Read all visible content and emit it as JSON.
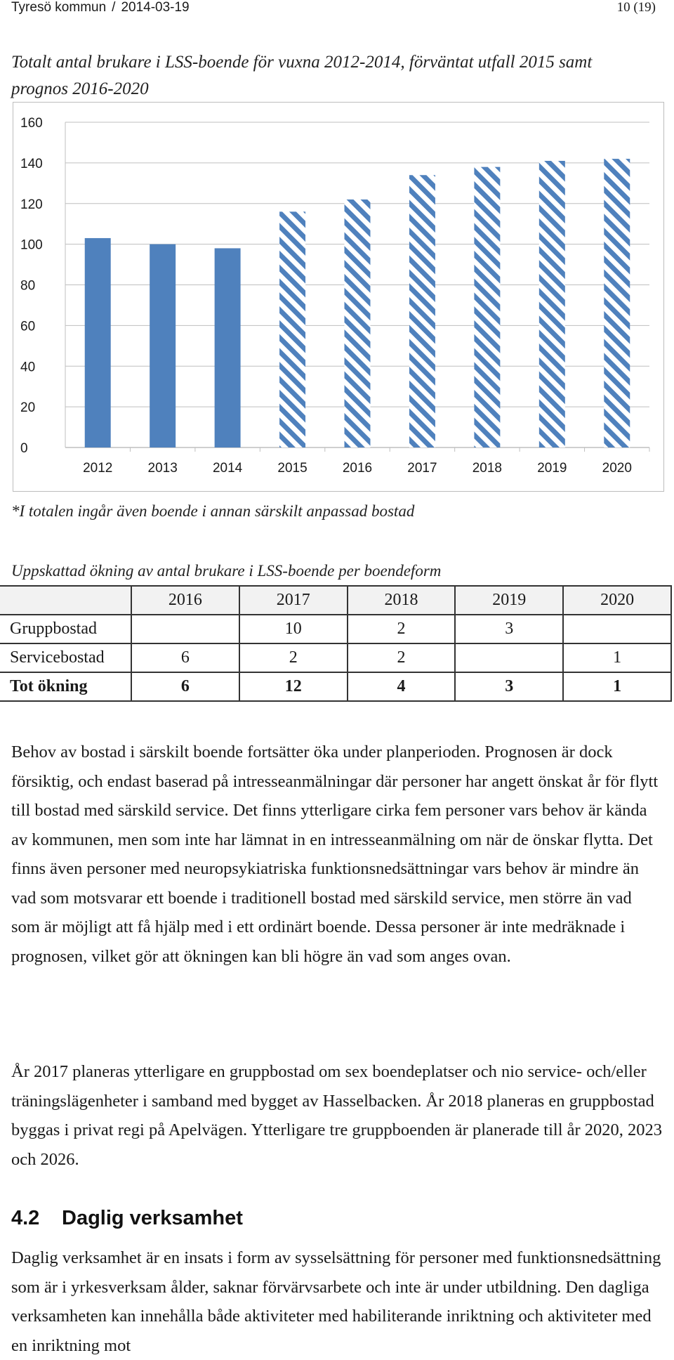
{
  "header": {
    "municipality": "Tyresö kommun",
    "separator": "/",
    "date": "2014-03-19",
    "page": "10 (19)"
  },
  "chart_title": "Totalt antal brukare i LSS-boende för vuxna 2012-2014, förväntat utfall 2015 samt prognos 2016-2020",
  "chart_data": {
    "type": "bar",
    "categories": [
      "2012",
      "2013",
      "2014",
      "2015",
      "2016",
      "2017",
      "2018",
      "2019",
      "2020"
    ],
    "values": [
      103,
      100,
      98,
      116,
      122,
      134,
      138,
      141,
      142
    ],
    "styles": [
      "solid",
      "solid",
      "solid",
      "hatched",
      "hatched",
      "hatched",
      "hatched",
      "hatched",
      "hatched"
    ],
    "ylim": [
      0,
      160
    ],
    "yticks": [
      "0",
      "20",
      "40",
      "60",
      "80",
      "100",
      "120",
      "140",
      "160"
    ],
    "grid": true,
    "colors": {
      "bar": "#4f81bd",
      "grid": "#bfbfbf"
    }
  },
  "chart_note": "*I totalen ingår även boende i annan särskilt anpassad bostad",
  "table": {
    "title": "Uppskattad ökning av antal brukare i LSS-boende per boendeform",
    "header": [
      "",
      "2016",
      "2017",
      "2018",
      "2019",
      "2020"
    ],
    "rows": [
      {
        "label": "Gruppbostad",
        "cells": [
          "",
          "10",
          "2",
          "3",
          ""
        ]
      },
      {
        "label": "Servicebostad",
        "cells": [
          "6",
          "2",
          "2",
          "",
          "1"
        ]
      },
      {
        "label": "Tot ökning",
        "cells": [
          "6",
          "12",
          "4",
          "3",
          "1"
        ]
      }
    ]
  },
  "paragraphs": [
    "Behov av bostad i särskilt boende fortsätter öka under planperioden. Prognosen är dock försiktig, och endast baserad på intresseanmälningar där personer har angett önskat år för flytt till bostad med särskild service. Det finns ytterligare cirka fem personer vars behov är kända av kommunen, men som inte har lämnat in en intresseanmälning om när de önskar flytta. Det finns även personer med neuropsykiatriska funktionsnedsättningar vars behov är mindre än vad som motsvarar ett boende i traditionell bostad med särskild service, men större än vad som är möjligt att få hjälp med i ett ordinärt boende. Dessa personer är inte medräknade i prognosen, vilket gör att ökningen kan bli högre än vad som anges ovan.",
    "År 2017 planeras ytterligare en gruppbostad om sex boendeplatser och nio service- och/eller träningslägenheter i samband med bygget av Hasselbacken. År 2018 planeras en gruppbostad byggas i privat regi på Apelvägen. Ytterligare tre gruppboenden är planerade till år 2020, 2023 och 2026.",
    "Daglig verksamhet är en insats i form av sysselsättning för personer med funktionsnedsättning som är i yrkesverksam ålder, saknar förvärvsarbete och inte är under utbildning. Den dagliga verksamheten kan innehålla både aktiviteter med habiliterande inriktning och aktiviteter med en inriktning mot"
  ],
  "section": {
    "number": "4.2",
    "title": "Daglig verksamhet"
  }
}
